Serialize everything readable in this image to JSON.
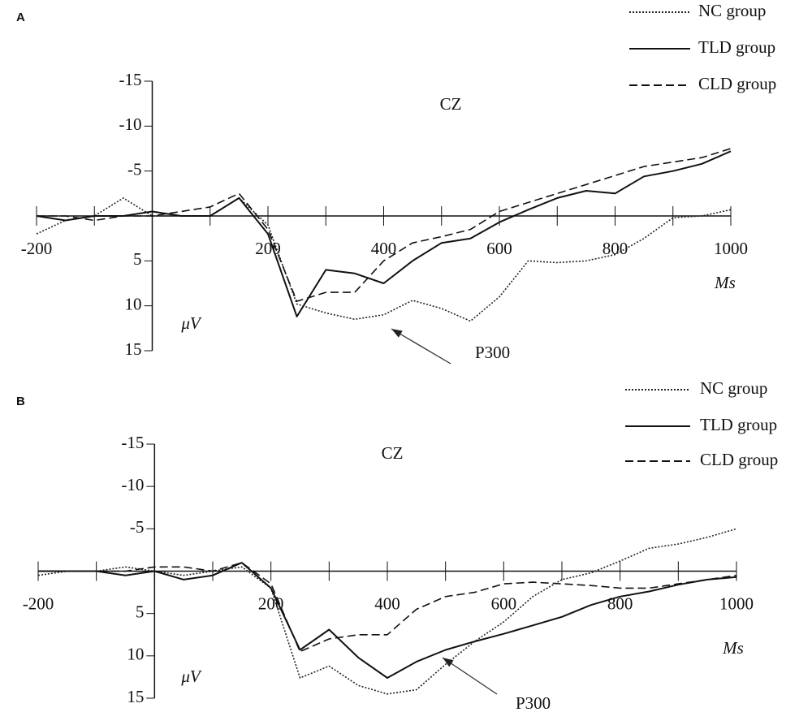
{
  "chart_data": [
    {
      "type": "line",
      "panel_label": "A",
      "title": "CZ",
      "x_label": "Ms",
      "y_label": "μV",
      "annotation": "P300",
      "x": [
        -200,
        -150,
        -100,
        -50,
        0,
        50,
        100,
        150,
        200,
        250,
        300,
        350,
        400,
        450,
        500,
        550,
        600,
        650,
        700,
        750,
        800,
        850,
        900,
        950,
        1000
      ],
      "series": [
        {
          "name": "NC group",
          "color": "#222222",
          "style": "dotted",
          "values": [
            2,
            0.5,
            0,
            -2,
            0,
            0,
            0,
            -2,
            1,
            9.8,
            10.8,
            11.5,
            11,
            9.4,
            10.3,
            11.7,
            9,
            5,
            5.2,
            5,
            4.3,
            2.5,
            0.2,
            0,
            -0.7
          ]
        },
        {
          "name": "TLD group",
          "color": "#111111",
          "style": "solid",
          "values": [
            0,
            0.5,
            0,
            0,
            -0.5,
            0,
            0,
            -2,
            2,
            11.2,
            6,
            6.4,
            7.5,
            5,
            3,
            2.5,
            0.7,
            -0.7,
            -2,
            -2.8,
            -2.5,
            -4.4,
            -5,
            -5.8,
            -7.2
          ]
        },
        {
          "name": "CLD group",
          "color": "#111111",
          "style": "dashed",
          "values": [
            0,
            0,
            0.5,
            0,
            0,
            -0.5,
            -1,
            -2.5,
            1.5,
            9.5,
            8.5,
            8.5,
            5,
            3,
            2.3,
            1.5,
            -0.5,
            -1.5,
            -2.5,
            -3.5,
            -4.5,
            -5.5,
            -6,
            -6.5,
            -7.5
          ]
        }
      ],
      "xlim": [
        -200,
        1000
      ],
      "ylim": [
        -15,
        15
      ],
      "y_inverted": true,
      "xticks": [
        -200,
        200,
        400,
        600,
        800,
        1000
      ],
      "x_minor_ticks": [
        -100,
        0,
        100,
        300,
        500,
        700,
        900
      ],
      "yticks": [
        -15,
        -10,
        -5,
        5,
        10,
        15
      ]
    },
    {
      "type": "line",
      "panel_label": "B",
      "title": "CZ",
      "x_label": "Ms",
      "y_label": "μV",
      "annotation": "P300",
      "x": [
        -200,
        -150,
        -100,
        -50,
        0,
        50,
        100,
        150,
        200,
        250,
        300,
        350,
        400,
        450,
        500,
        550,
        600,
        650,
        700,
        750,
        800,
        850,
        900,
        950,
        1000
      ],
      "series": [
        {
          "name": "NC group",
          "color": "#222222",
          "style": "dotted",
          "values": [
            0.5,
            0,
            0,
            -0.5,
            0,
            0.5,
            0,
            -0.5,
            2,
            12.6,
            11.2,
            13.5,
            14.5,
            14,
            11,
            8.3,
            6,
            3,
            1,
            0.2,
            -1.2,
            -2.7,
            -3.2,
            -4,
            -5
          ]
        },
        {
          "name": "TLD group",
          "color": "#111111",
          "style": "solid",
          "values": [
            0,
            0,
            0,
            0.5,
            0,
            1,
            0.5,
            -1,
            2,
            9.3,
            6.9,
            10.2,
            12.6,
            10.7,
            9.3,
            8.3,
            7.4,
            6.4,
            5.4,
            4,
            3,
            2.4,
            1.6,
            1,
            0.7
          ]
        },
        {
          "name": "CLD group",
          "color": "#111111",
          "style": "dashed",
          "values": [
            0,
            0,
            0,
            0,
            -0.5,
            -0.5,
            0,
            -1,
            1.5,
            9.5,
            8,
            7.5,
            7.5,
            4.5,
            3,
            2.5,
            1.5,
            1.3,
            1.5,
            1.7,
            2,
            2,
            1.5,
            1,
            0.5
          ]
        }
      ],
      "xlim": [
        -200,
        1000
      ],
      "ylim": [
        -15,
        15
      ],
      "y_inverted": true,
      "xticks": [
        -200,
        200,
        400,
        600,
        800,
        1000
      ],
      "x_minor_ticks": [
        -100,
        0,
        100,
        300,
        500,
        700,
        900
      ],
      "yticks": [
        -15,
        -10,
        -5,
        5,
        10,
        15
      ]
    }
  ]
}
